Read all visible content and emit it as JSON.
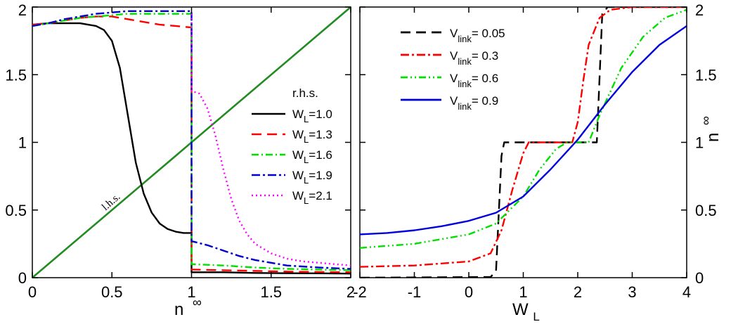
{
  "chart_data": [
    {
      "type": "line",
      "panel": "left",
      "xlabel": "n",
      "xlabel_sup": "∞",
      "ylabel": "",
      "xlim": [
        0,
        2
      ],
      "ylim": [
        0,
        2
      ],
      "xticks": [
        "0",
        "0.5",
        "1",
        "1.5",
        "2"
      ],
      "xtick_values": [
        0,
        0.5,
        1,
        1.5,
        2
      ],
      "yticks": [
        "0",
        "0.5",
        "1",
        "1.5",
        "2"
      ],
      "ytick_values": [
        0,
        0.5,
        1,
        1.5,
        2
      ],
      "legend_title": "r.h.s.",
      "legend_position": "center-right",
      "annotation": "l.h.s.",
      "lhs_line": {
        "color": "#228B22",
        "x": [
          0,
          2
        ],
        "y": [
          0,
          2
        ]
      },
      "series": [
        {
          "name": "W",
          "sub": "L",
          "value": "=1.0",
          "color": "#000000",
          "dash": "",
          "x": [
            0,
            0.1,
            0.2,
            0.3,
            0.4,
            0.45,
            0.5,
            0.55,
            0.6,
            0.65,
            0.7,
            0.75,
            0.8,
            0.85,
            0.9,
            0.95,
            0.99,
            0.999,
            1.0,
            1.0,
            1.2,
            1.4,
            1.6,
            1.8,
            2.0
          ],
          "y": [
            1.87,
            1.88,
            1.88,
            1.88,
            1.86,
            1.83,
            1.75,
            1.55,
            1.2,
            0.85,
            0.62,
            0.48,
            0.4,
            0.36,
            0.34,
            0.33,
            0.33,
            0.33,
            0.34,
            0.04,
            0.04,
            0.035,
            0.033,
            0.032,
            0.03
          ]
        },
        {
          "name": "W",
          "sub": "L",
          "value": "=1.3",
          "color": "#FF0000",
          "dash": "14,8",
          "x": [
            0,
            0.1,
            0.2,
            0.3,
            0.4,
            0.5,
            0.6,
            0.7,
            0.8,
            0.9,
            0.99,
            1.0,
            1.0,
            1.2,
            1.4,
            1.6,
            1.8,
            2.0
          ],
          "y": [
            1.87,
            1.88,
            1.9,
            1.92,
            1.93,
            1.93,
            1.91,
            1.89,
            1.87,
            1.86,
            1.85,
            1.85,
            0.06,
            0.055,
            0.05,
            0.045,
            0.042,
            0.04
          ]
        },
        {
          "name": "W",
          "sub": "L",
          "value": "=1.6",
          "color": "#00E000",
          "dash": "10,4,2,4",
          "x": [
            0,
            0.1,
            0.2,
            0.3,
            0.4,
            0.5,
            0.6,
            0.7,
            0.8,
            0.9,
            0.99,
            1.0,
            1.0,
            1.2,
            1.4,
            1.6,
            1.8,
            2.0
          ],
          "y": [
            1.86,
            1.88,
            1.9,
            1.92,
            1.93,
            1.94,
            1.95,
            1.95,
            1.95,
            1.95,
            1.95,
            1.95,
            0.1,
            0.09,
            0.075,
            0.065,
            0.06,
            0.055
          ]
        },
        {
          "name": "W",
          "sub": "L",
          "value": "=1.9",
          "color": "#0000CC",
          "dash": "12,4,3,4",
          "x": [
            0,
            0.1,
            0.2,
            0.3,
            0.4,
            0.5,
            0.6,
            0.7,
            0.8,
            0.9,
            0.99,
            1.0,
            1.0,
            1.1,
            1.2,
            1.3,
            1.4,
            1.5,
            1.6,
            1.8,
            2.0
          ],
          "y": [
            1.86,
            1.88,
            1.91,
            1.93,
            1.95,
            1.96,
            1.97,
            1.97,
            1.97,
            1.97,
            1.97,
            1.97,
            0.27,
            0.24,
            0.2,
            0.16,
            0.13,
            0.11,
            0.09,
            0.075,
            0.065
          ]
        },
        {
          "name": "W",
          "sub": "L",
          "value": "=2.1",
          "color": "#FF00FF",
          "dash": "2,4",
          "x": [
            1.0,
            1.0,
            1.05,
            1.1,
            1.15,
            1.2,
            1.25,
            1.3,
            1.35,
            1.4,
            1.5,
            1.6,
            1.7,
            1.8,
            1.9,
            2.0
          ],
          "y": [
            1.95,
            1.38,
            1.36,
            1.25,
            1.05,
            0.8,
            0.58,
            0.42,
            0.32,
            0.25,
            0.18,
            0.14,
            0.12,
            0.11,
            0.1,
            0.09
          ]
        }
      ]
    },
    {
      "type": "line",
      "panel": "right",
      "xlabel": "W",
      "xlabel_sub": "L",
      "ylabel": "n",
      "ylabel_sup": "∞",
      "ylabel_position": "right",
      "xlim": [
        -2,
        4
      ],
      "ylim": [
        0,
        2
      ],
      "xticks": [
        "-2",
        "-1",
        "0",
        "1",
        "2",
        "3",
        "4"
      ],
      "xtick_values": [
        -2,
        -1,
        0,
        1,
        2,
        3,
        4
      ],
      "yticks": [
        "0",
        "0.5",
        "1",
        "1.5",
        "2"
      ],
      "ytick_values": [
        0,
        0.5,
        1,
        1.5,
        2
      ],
      "legend_position": "top-left",
      "series": [
        {
          "name": "V",
          "sub": "link",
          "value": "= 0.05",
          "color": "#000000",
          "dash": "14,8",
          "x": [
            -2,
            0.4,
            0.5,
            0.6,
            0.65,
            2.35,
            2.45,
            2.55,
            4
          ],
          "y": [
            0.0,
            0.005,
            0.05,
            0.9,
            1.0,
            1.0,
            1.95,
            2.0,
            2.0
          ]
        },
        {
          "name": "V",
          "sub": "link",
          "value": "=   0.3",
          "color": "#FF0000",
          "dash": "12,4,3,4",
          "x": [
            -2,
            -1,
            0,
            0.4,
            0.6,
            0.8,
            1.0,
            1.1,
            1.15,
            1.9,
            2.0,
            2.1,
            2.2,
            2.4,
            2.6,
            3.0,
            4.0
          ],
          "y": [
            0.08,
            0.09,
            0.12,
            0.18,
            0.35,
            0.65,
            0.92,
            1.0,
            1.0,
            1.0,
            1.15,
            1.45,
            1.72,
            1.92,
            1.98,
            2.0,
            2.0
          ]
        },
        {
          "name": "V",
          "sub": "link",
          "value": "=   0.6",
          "color": "#00E000",
          "dash": "10,4,2,4,2,4",
          "x": [
            -2,
            -1,
            0,
            0.5,
            1.0,
            1.3,
            1.6,
            1.8,
            2.2,
            2.4,
            2.8,
            3.2,
            3.6,
            4.0
          ],
          "y": [
            0.22,
            0.25,
            0.32,
            0.4,
            0.6,
            0.8,
            0.95,
            1.0,
            1.0,
            1.2,
            1.55,
            1.78,
            1.92,
            1.98
          ]
        },
        {
          "name": "V",
          "sub": "link",
          "value": "=   0.9",
          "color": "#0000DD",
          "dash": "",
          "x": [
            -2,
            -1.5,
            -1,
            -0.5,
            0,
            0.5,
            1.0,
            1.5,
            2.0,
            2.5,
            3.0,
            3.5,
            4.0
          ],
          "y": [
            0.32,
            0.33,
            0.35,
            0.38,
            0.42,
            0.48,
            0.6,
            0.8,
            1.02,
            1.28,
            1.52,
            1.72,
            1.86
          ]
        }
      ]
    }
  ]
}
